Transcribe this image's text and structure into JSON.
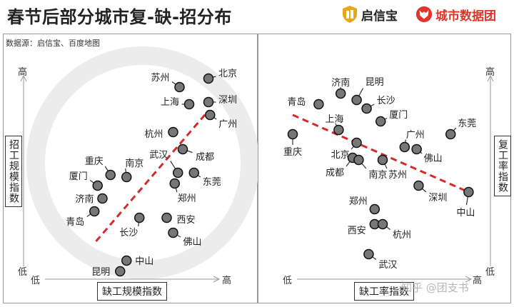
{
  "header": {
    "title": "春节后部分城市复-缺-招分布",
    "brand1": "启信宝",
    "brand2": "城市数据团",
    "brand1_color": "#e6a817",
    "brand2_color": "#e0352b",
    "source": "数据源：启信宝、百度地图"
  },
  "watermark": "知乎 @团支书",
  "chart_data": [
    {
      "type": "scatter",
      "xlabel": "缺工规模指数",
      "ylabel": "招工规模指数",
      "x_low": "低",
      "x_high": "高",
      "y_low": "低",
      "y_high": "高",
      "xlim": [
        0,
        100
      ],
      "ylim": [
        0,
        100
      ],
      "trend": "rising",
      "trend_color": "#d62a2a",
      "trend_line": [
        [
          22,
          20
        ],
        [
          92,
          81
        ]
      ],
      "points": [
        {
          "name": "北京",
          "x": 92,
          "y": 96
        },
        {
          "name": "苏州",
          "x": 74,
          "y": 92
        },
        {
          "name": "深圳",
          "x": 92,
          "y": 85
        },
        {
          "name": "上海",
          "x": 80,
          "y": 84
        },
        {
          "name": "广州",
          "x": 93,
          "y": 79
        },
        {
          "name": "杭州",
          "x": 70,
          "y": 71
        },
        {
          "name": "成都",
          "x": 76,
          "y": 63
        },
        {
          "name": "武汉",
          "x": 73,
          "y": 52
        },
        {
          "name": "东莞",
          "x": 83,
          "y": 52
        },
        {
          "name": "重庆",
          "x": 31,
          "y": 51
        },
        {
          "name": "南京",
          "x": 41,
          "y": 50
        },
        {
          "name": "郑州",
          "x": 71,
          "y": 47
        },
        {
          "name": "厦门",
          "x": 23,
          "y": 46
        },
        {
          "name": "济南",
          "x": 26,
          "y": 40
        },
        {
          "name": "西安",
          "x": 66,
          "y": 31
        },
        {
          "name": "青岛",
          "x": 21,
          "y": 34
        },
        {
          "name": "长沙",
          "x": 49,
          "y": 31
        },
        {
          "name": "佛山",
          "x": 70,
          "y": 24
        },
        {
          "name": "中山",
          "x": 41,
          "y": 11
        },
        {
          "name": "昆明",
          "x": 37,
          "y": 6
        }
      ]
    },
    {
      "type": "scatter",
      "xlabel": "缺工率指数",
      "ylabel": "复工率指数",
      "x_low": "低",
      "x_high": "高",
      "y_low": "低",
      "y_high": "高",
      "xlim": [
        0,
        100
      ],
      "ylim": [
        0,
        100
      ],
      "trend": "falling",
      "trend_color": "#d62a2a",
      "trend_line": [
        [
          10,
          79
        ],
        [
          98,
          43
        ]
      ],
      "points": [
        {
          "name": "济南",
          "x": 34,
          "y": 89
        },
        {
          "name": "昆明",
          "x": 42,
          "y": 86
        },
        {
          "name": "青岛",
          "x": 23,
          "y": 84
        },
        {
          "name": "长沙",
          "x": 47,
          "y": 82
        },
        {
          "name": "厦门",
          "x": 54,
          "y": 76
        },
        {
          "name": "上海",
          "x": 33,
          "y": 72
        },
        {
          "name": "东莞",
          "x": 89,
          "y": 70
        },
        {
          "name": "重庆",
          "x": 10,
          "y": 70
        },
        {
          "name": "北京",
          "x": 42,
          "y": 66
        },
        {
          "name": "广州",
          "x": 66,
          "y": 64
        },
        {
          "name": "佛山",
          "x": 72,
          "y": 63
        },
        {
          "name": "成都",
          "x": 40,
          "y": 59
        },
        {
          "name": "南京",
          "x": 43,
          "y": 58
        },
        {
          "name": "苏州",
          "x": 55,
          "y": 58
        },
        {
          "name": "深圳",
          "x": 73,
          "y": 46
        },
        {
          "name": "中山",
          "x": 98,
          "y": 43
        },
        {
          "name": "郑州",
          "x": 51,
          "y": 35
        },
        {
          "name": "西安",
          "x": 51,
          "y": 28
        },
        {
          "name": "杭州",
          "x": 55,
          "y": 28
        },
        {
          "name": "武汉",
          "x": 48,
          "y": 14
        }
      ]
    }
  ]
}
